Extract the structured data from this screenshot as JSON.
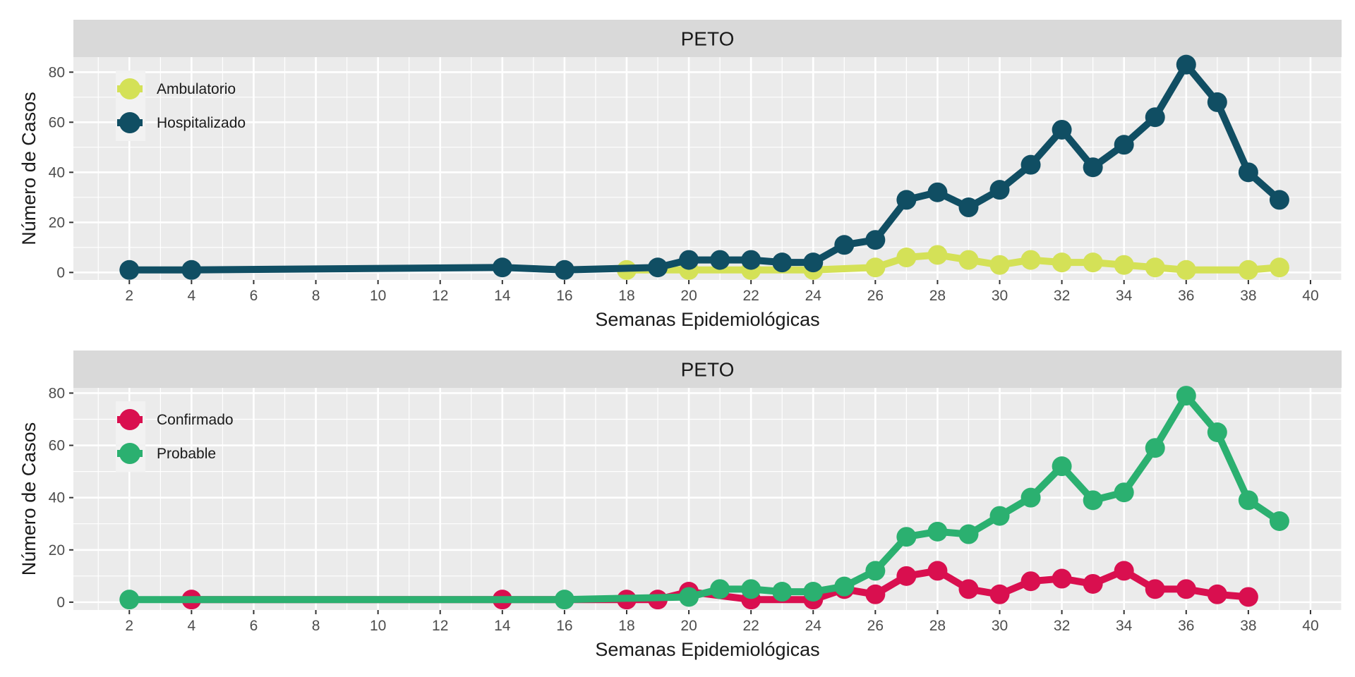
{
  "chart_data": [
    {
      "type": "line",
      "title": "PETO",
      "xlabel": "Semanas Epidemiológicas",
      "ylabel": "Número de Casos",
      "xlim": [
        0.2,
        41
      ],
      "ylim": [
        -3,
        86
      ],
      "xticks": [
        2,
        4,
        6,
        8,
        10,
        12,
        14,
        16,
        18,
        20,
        22,
        24,
        26,
        28,
        30,
        32,
        34,
        36,
        38,
        40
      ],
      "yticks": [
        0,
        20,
        40,
        60,
        80
      ],
      "grid": true,
      "legend": {
        "position": "top-left"
      },
      "series": [
        {
          "name": "Ambulatorio",
          "color": "#d4e157",
          "x": [
            18,
            20,
            22,
            24,
            26,
            27,
            28,
            29,
            30,
            31,
            32,
            33,
            34,
            35,
            36,
            38,
            39
          ],
          "y": [
            1,
            1,
            1,
            1,
            2,
            6,
            7,
            5,
            3,
            5,
            4,
            4,
            3,
            2,
            1,
            1,
            2
          ]
        },
        {
          "name": "Hospitalizado",
          "color": "#104e63",
          "x": [
            2,
            4,
            14,
            16,
            19,
            20,
            21,
            22,
            23,
            24,
            25,
            26,
            27,
            28,
            29,
            30,
            31,
            32,
            33,
            34,
            35,
            36,
            37,
            38,
            39
          ],
          "y": [
            1,
            1,
            2,
            1,
            2,
            5,
            5,
            5,
            4,
            4,
            11,
            13,
            29,
            32,
            26,
            33,
            43,
            57,
            42,
            51,
            62,
            83,
            68,
            40,
            29
          ]
        }
      ]
    },
    {
      "type": "line",
      "title": "PETO",
      "xlabel": "Semanas Epidemiológicas",
      "ylabel": "Número de Casos",
      "xlim": [
        0.2,
        41
      ],
      "ylim": [
        -3,
        82
      ],
      "xticks": [
        2,
        4,
        6,
        8,
        10,
        12,
        14,
        16,
        18,
        20,
        22,
        24,
        26,
        28,
        30,
        32,
        34,
        36,
        38,
        40
      ],
      "yticks": [
        0,
        20,
        40,
        60,
        80
      ],
      "grid": true,
      "legend": {
        "position": "top-left"
      },
      "series": [
        {
          "name": "Confirmado",
          "color": "#d90f4f",
          "x": [
            4,
            14,
            18,
            19,
            20,
            22,
            24,
            25,
            26,
            27,
            28,
            29,
            30,
            31,
            32,
            33,
            34,
            35,
            36,
            37,
            38
          ],
          "y": [
            1,
            1,
            1,
            1,
            4,
            1,
            1,
            5,
            3,
            10,
            12,
            5,
            3,
            8,
            9,
            7,
            12,
            5,
            5,
            3,
            2
          ]
        },
        {
          "name": "Probable",
          "color": "#2bb070",
          "x": [
            2,
            16,
            20,
            21,
            22,
            23,
            24,
            25,
            26,
            27,
            28,
            29,
            30,
            31,
            32,
            33,
            34,
            35,
            36,
            37,
            38,
            39
          ],
          "y": [
            1,
            1,
            2,
            5,
            5,
            4,
            4,
            6,
            12,
            25,
            27,
            26,
            33,
            40,
            52,
            39,
            42,
            59,
            79,
            65,
            39,
            31
          ]
        }
      ]
    }
  ]
}
